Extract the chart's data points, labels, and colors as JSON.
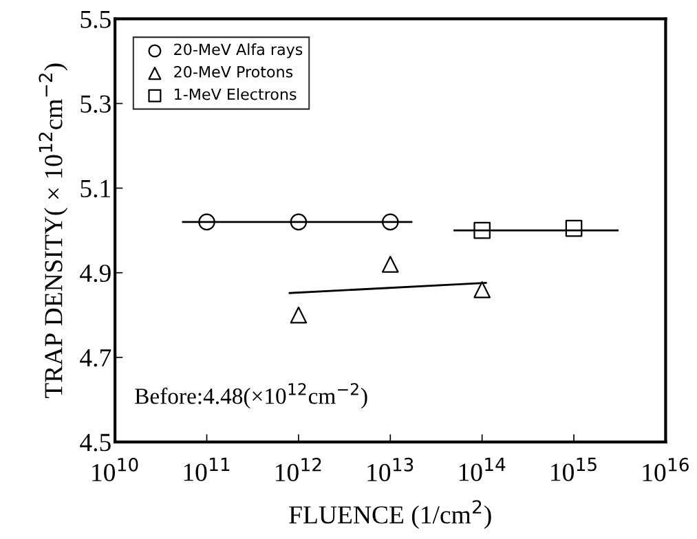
{
  "chart_data": {
    "type": "scatter",
    "xlabel": "FLUENCE (1/cm$^{2}$)",
    "ylabel": "TRAP DENSITY( × 10$^{12}$cm$^{−2}$)",
    "log": "x",
    "xlim": [
      10000000000.0,
      1e+16
    ],
    "xticks": [
      {
        "value": 10000000000.0,
        "label": "10$^{10}$"
      },
      {
        "value": 100000000000.0,
        "label": "10$^{11}$"
      },
      {
        "value": 1000000000000.0,
        "label": "10$^{12}$"
      },
      {
        "value": 10000000000000.0,
        "label": "10$^{13}$"
      },
      {
        "value": 100000000000000.0,
        "label": "10$^{14}$"
      },
      {
        "value": 1000000000000000.0,
        "label": "10$^{15}$"
      },
      {
        "value": 1e+16,
        "label": "10$^{16}$"
      }
    ],
    "ylim": [
      4.5,
      5.5
    ],
    "yticks": [
      4.5,
      4.7,
      4.9,
      5.1,
      5.3,
      5.5
    ],
    "grid": false,
    "legend": "top left",
    "annotations": [
      "Before:4.48(×10$^{12}$cm$^{−2}$)"
    ],
    "series": [
      {
        "name": "20-MeV Alfa rays",
        "color": "#000000",
        "marker": "circle",
        "x": [
          100000000000.0,
          1000000000000.0,
          10000000000000.0
        ],
        "values": [
          5.02,
          5.02,
          5.02
        ]
      },
      {
        "name": "20-MeV Protons",
        "color": "#000000",
        "marker": "triangle",
        "x": [
          1000000000000.0,
          10000000000000.0,
          100000000000000.0
        ],
        "values": [
          4.8,
          4.92,
          4.86
        ]
      },
      {
        "name": "1-MeV Electrons",
        "color": "#000000",
        "marker": "square",
        "x": [
          100000000000000.0,
          1000000000000000.0
        ],
        "values": [
          5.0,
          5.005
        ]
      },
      {
        "type": "line",
        "color": "#000000",
        "marker": "none",
        "x": [
          55000000000.0,
          17000000000000.0
        ],
        "values": [
          5.02,
          5.02
        ]
      },
      {
        "type": "line",
        "color": "#000000",
        "marker": "none",
        "x": [
          800000000000.0,
          110000000000000.0
        ],
        "values": [
          4.852,
          4.876
        ]
      },
      {
        "type": "line",
        "color": "#000000",
        "marker": "none",
        "x": [
          50000000000000.0,
          3000000000000000.0
        ],
        "values": [
          5.0,
          5.0
        ]
      }
    ]
  }
}
